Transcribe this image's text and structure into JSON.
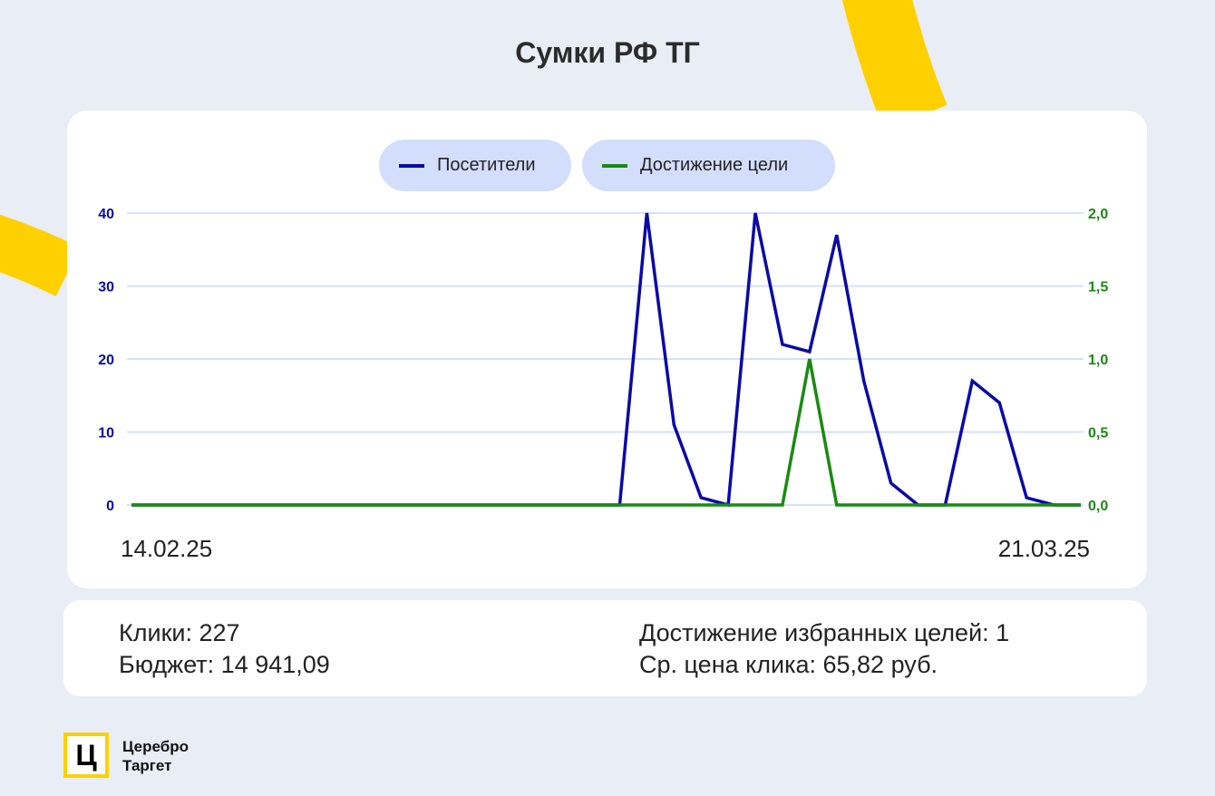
{
  "title": "Сумки РФ ТГ",
  "colors": {
    "visitors": "#0a0aa8",
    "goals": "#1a8a12",
    "accent": "#ffd000",
    "grid": "#d6e0fb"
  },
  "stats": {
    "clicks": "Клики: 227",
    "budget": "Бюджет: 14 941,09",
    "goals": "Достижение избранных целей: 1",
    "cpc": "Ср. цена клика: 65,82 руб."
  },
  "logo": {
    "mark": "Ц",
    "line1": "Церебро",
    "line2": "Таргет"
  },
  "chart_data": {
    "type": "line",
    "x_start": "14.02.25",
    "x_end": "21.03.25",
    "xticks": [
      "14.02.25",
      "21.03.25"
    ],
    "yleft": {
      "ticks": [
        "0",
        "10",
        "20",
        "30",
        "40"
      ],
      "lim": [
        0,
        40
      ]
    },
    "yright": {
      "ticks": [
        "0,0",
        "0,5",
        "1,0",
        "1,5",
        "2,0"
      ],
      "lim": [
        0,
        2
      ]
    },
    "grid": true,
    "legend": "top-center",
    "series": [
      {
        "name": "Посетители",
        "axis": "left",
        "values": [
          0,
          0,
          0,
          0,
          0,
          0,
          0,
          0,
          0,
          0,
          0,
          0,
          0,
          0,
          0,
          0,
          0,
          0,
          0,
          40,
          11,
          1,
          0,
          40,
          22,
          21,
          37,
          17,
          3,
          0,
          0,
          17,
          14,
          1,
          0,
          0
        ]
      },
      {
        "name": "Достижение цели",
        "axis": "right",
        "values": [
          0,
          0,
          0,
          0,
          0,
          0,
          0,
          0,
          0,
          0,
          0,
          0,
          0,
          0,
          0,
          0,
          0,
          0,
          0,
          0,
          0,
          0,
          0,
          0,
          0,
          1,
          0,
          0,
          0,
          0,
          0,
          0,
          0,
          0,
          0,
          0
        ]
      }
    ]
  }
}
